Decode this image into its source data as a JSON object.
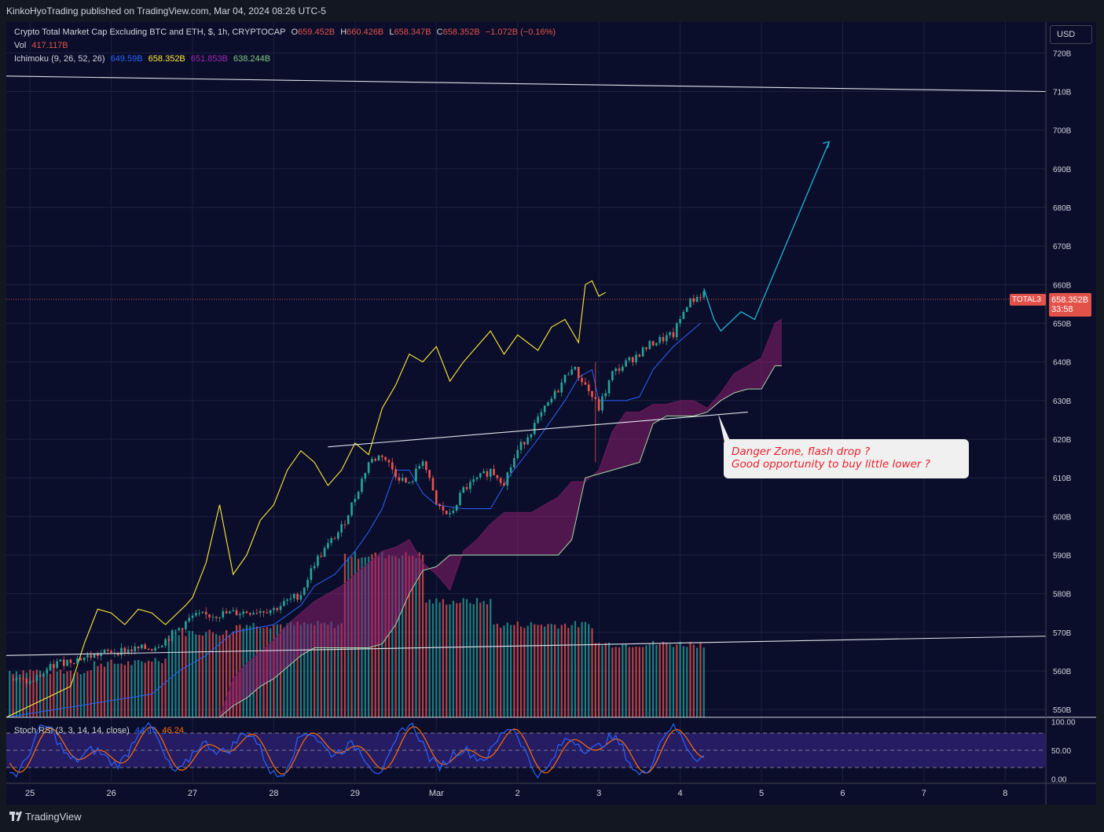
{
  "header": {
    "published": "KinkoHyoTrading published on TradingView.com, Mar 04, 2024 08:26 UTC-5"
  },
  "legend": {
    "title": "Crypto Total Market Cap Excluding BTC and ETH, $, 1h, CRYPTOCAP",
    "o_label": "O",
    "o_value": "659.452B",
    "h_label": "H",
    "h_value": "660.426B",
    "l_label": "L",
    "l_value": "658.347B",
    "c_label": "C",
    "c_value": "658.352B",
    "change": "−1.072B (−0.16%)",
    "vol_label": "Vol",
    "vol_value": "417.117B",
    "ichi_label": "Ichimoku (9, 26, 52, 26)",
    "ichi_v1": "649.59B",
    "ichi_v2": "658.352B",
    "ichi_v3": "651.853B",
    "ichi_v4": "638.244B",
    "stoch_label": "Stoch RSI (3, 3, 14, 14, close)",
    "stoch_k": "44.45",
    "stoch_d": "46.24"
  },
  "currency_button": "USD",
  "price_tag": {
    "price": "658.352B",
    "countdown": "33:58",
    "symbol": "TOTAL3"
  },
  "annotation": {
    "line1": "Danger Zone, flash drop ?",
    "line2": "Good opportunity to buy little lower ?"
  },
  "brand": "TradingView",
  "colors": {
    "background": "#131722",
    "pane": "#0b0e2a",
    "up": "#26a69a",
    "down": "#ef5350",
    "tenkan": "#2962ff",
    "chikou": "#ffeb3b",
    "cloud": "#8b1f6e",
    "projection": "#1fb5d6"
  },
  "chart_data": [
    {
      "type": "line",
      "subtype": "candlestick-with-ichimoku",
      "ylim": [
        548,
        728
      ],
      "y_ticks": [
        "720B",
        "710B",
        "700B",
        "690B",
        "680B",
        "670B",
        "660B",
        "650B",
        "640B",
        "630B",
        "620B",
        "610B",
        "600B",
        "590B",
        "580B",
        "570B",
        "560B",
        "550B"
      ],
      "y_tick_values": [
        720,
        710,
        700,
        690,
        680,
        670,
        660,
        650,
        640,
        630,
        620,
        610,
        600,
        590,
        580,
        570,
        560,
        550
      ],
      "x_ticks": [
        "25",
        "26",
        "27",
        "28",
        "29",
        "Mar",
        "2",
        "3",
        "4",
        "5",
        "6",
        "7",
        "8"
      ],
      "x_tick_hours": [
        0,
        24,
        48,
        72,
        96,
        120,
        144,
        168,
        192,
        216,
        240,
        264,
        288
      ],
      "xlim_hours": [
        -7,
        300
      ],
      "last_hour": 199,
      "price_path": [
        [
          -7,
          558
        ],
        [
          0,
          557
        ],
        [
          8,
          562
        ],
        [
          24,
          565
        ],
        [
          36,
          566
        ],
        [
          40,
          568
        ],
        [
          48,
          574
        ],
        [
          60,
          575
        ],
        [
          72,
          576
        ],
        [
          80,
          580
        ],
        [
          84,
          588
        ],
        [
          92,
          597
        ],
        [
          96,
          605
        ],
        [
          100,
          614
        ],
        [
          104,
          616
        ],
        [
          108,
          611
        ],
        [
          112,
          608
        ],
        [
          116,
          615
        ],
        [
          120,
          603
        ],
        [
          124,
          600
        ],
        [
          128,
          607
        ],
        [
          136,
          612
        ],
        [
          140,
          609
        ],
        [
          144,
          617
        ],
        [
          150,
          625
        ],
        [
          156,
          633
        ],
        [
          160,
          639
        ],
        [
          164,
          634
        ],
        [
          168,
          628
        ],
        [
          172,
          637
        ],
        [
          178,
          641
        ],
        [
          184,
          645
        ],
        [
          190,
          647
        ],
        [
          194,
          655
        ],
        [
          199,
          658
        ]
      ],
      "tenkan_path": [
        [
          -7,
          548
        ],
        [
          36,
          554
        ],
        [
          44,
          560
        ],
        [
          52,
          564
        ],
        [
          60,
          570
        ],
        [
          72,
          572
        ],
        [
          80,
          577
        ],
        [
          84,
          582
        ],
        [
          90,
          585
        ],
        [
          96,
          591
        ],
        [
          100,
          596
        ],
        [
          104,
          602
        ],
        [
          108,
          612
        ],
        [
          112,
          612
        ],
        [
          116,
          606
        ],
        [
          120,
          603
        ],
        [
          128,
          602
        ],
        [
          136,
          602
        ],
        [
          142,
          611
        ],
        [
          150,
          620
        ],
        [
          154,
          625
        ],
        [
          158,
          630
        ],
        [
          162,
          636
        ],
        [
          166,
          638
        ],
        [
          168,
          630
        ],
        [
          172,
          630
        ],
        [
          176,
          630
        ],
        [
          180,
          631
        ],
        [
          184,
          638
        ],
        [
          190,
          644
        ],
        [
          194,
          647
        ],
        [
          198,
          650
        ]
      ],
      "chikou_path": [
        [
          -7,
          548
        ],
        [
          12,
          556
        ],
        [
          16,
          567
        ],
        [
          20,
          576
        ],
        [
          24,
          575
        ],
        [
          28,
          572
        ],
        [
          32,
          576
        ],
        [
          36,
          575
        ],
        [
          40,
          572
        ],
        [
          46,
          577
        ],
        [
          48,
          579
        ],
        [
          52,
          588
        ],
        [
          56,
          603
        ],
        [
          60,
          585
        ],
        [
          64,
          590
        ],
        [
          68,
          599
        ],
        [
          72,
          603
        ],
        [
          76,
          612
        ],
        [
          80,
          617
        ],
        [
          84,
          614
        ],
        [
          88,
          608
        ],
        [
          92,
          612
        ],
        [
          96,
          619
        ],
        [
          100,
          616
        ],
        [
          104,
          628
        ],
        [
          108,
          634
        ],
        [
          112,
          642
        ],
        [
          116,
          640
        ],
        [
          120,
          644
        ],
        [
          124,
          635
        ],
        [
          128,
          640
        ],
        [
          132,
          644
        ],
        [
          136,
          648
        ],
        [
          140,
          642
        ],
        [
          144,
          647
        ],
        [
          150,
          643
        ],
        [
          154,
          649
        ],
        [
          158,
          651
        ],
        [
          162,
          645
        ],
        [
          164,
          660
        ],
        [
          166,
          661
        ],
        [
          168,
          657
        ],
        [
          170,
          658
        ]
      ],
      "span_a": [
        [
          -7,
          548
        ],
        [
          56,
          548
        ],
        [
          60,
          558
        ],
        [
          64,
          562
        ],
        [
          68,
          565
        ],
        [
          72,
          568
        ],
        [
          76,
          572
        ],
        [
          80,
          575
        ],
        [
          84,
          578
        ],
        [
          88,
          580
        ],
        [
          92,
          582
        ],
        [
          96,
          585
        ],
        [
          100,
          588
        ],
        [
          104,
          591
        ],
        [
          108,
          592
        ],
        [
          112,
          594
        ],
        [
          116,
          588
        ],
        [
          120,
          585
        ],
        [
          124,
          581
        ],
        [
          128,
          591
        ],
        [
          132,
          594
        ],
        [
          136,
          598
        ],
        [
          140,
          601
        ],
        [
          144,
          601
        ],
        [
          148,
          601
        ],
        [
          152,
          603
        ],
        [
          156,
          605
        ],
        [
          160,
          609
        ],
        [
          164,
          609
        ],
        [
          168,
          612
        ],
        [
          172,
          622
        ],
        [
          176,
          627
        ],
        [
          180,
          627
        ],
        [
          184,
          629
        ],
        [
          188,
          629
        ],
        [
          192,
          630
        ],
        [
          196,
          630
        ],
        [
          200,
          628
        ],
        [
          204,
          632
        ],
        [
          208,
          637
        ],
        [
          212,
          639
        ],
        [
          216,
          641
        ],
        [
          220,
          650
        ],
        [
          222,
          651
        ]
      ],
      "span_b": [
        [
          -7,
          548
        ],
        [
          56,
          548
        ],
        [
          60,
          551
        ],
        [
          64,
          553
        ],
        [
          68,
          556
        ],
        [
          72,
          558
        ],
        [
          76,
          561
        ],
        [
          80,
          564
        ],
        [
          84,
          566
        ],
        [
          88,
          566
        ],
        [
          92,
          566
        ],
        [
          96,
          566
        ],
        [
          100,
          566
        ],
        [
          104,
          567
        ],
        [
          108,
          572
        ],
        [
          112,
          580
        ],
        [
          116,
          586
        ],
        [
          120,
          587
        ],
        [
          124,
          590
        ],
        [
          128,
          590
        ],
        [
          132,
          590
        ],
        [
          136,
          590
        ],
        [
          140,
          590
        ],
        [
          144,
          590
        ],
        [
          148,
          590
        ],
        [
          152,
          590
        ],
        [
          156,
          590
        ],
        [
          160,
          594
        ],
        [
          164,
          610
        ],
        [
          168,
          611
        ],
        [
          172,
          612
        ],
        [
          176,
          613
        ],
        [
          180,
          614
        ],
        [
          184,
          624
        ],
        [
          188,
          626
        ],
        [
          192,
          626
        ],
        [
          196,
          626
        ],
        [
          200,
          627
        ],
        [
          204,
          630
        ],
        [
          208,
          632
        ],
        [
          212,
          633
        ],
        [
          216,
          633
        ],
        [
          220,
          639
        ],
        [
          222,
          639
        ]
      ],
      "projection_path": [
        [
          199,
          659
        ],
        [
          202,
          651
        ],
        [
          204,
          648
        ],
        [
          210,
          653
        ],
        [
          214,
          651
        ],
        [
          236,
          697
        ]
      ],
      "trendlines": [
        [
          [
            -7,
            714
          ],
          [
            300,
            710
          ]
        ],
        [
          [
            -7,
            564
          ],
          [
            300,
            569
          ]
        ],
        [
          [
            88,
            618
          ],
          [
            212,
            627
          ]
        ]
      ],
      "volume_bars_note": "volume histogram drawn behind price"
    },
    {
      "type": "line",
      "subtype": "stoch-rsi",
      "ylim": [
        -5,
        105
      ],
      "y_ticks": [
        "100.00",
        "50.00",
        "0.00"
      ],
      "y_tick_values": [
        100,
        50,
        0
      ],
      "band_upper": 80,
      "band_mid": 50,
      "band_lower": 20,
      "series": [
        {
          "name": "K",
          "color": "#2962ff"
        },
        {
          "name": "D",
          "color": "#ff6d00"
        }
      ]
    }
  ]
}
